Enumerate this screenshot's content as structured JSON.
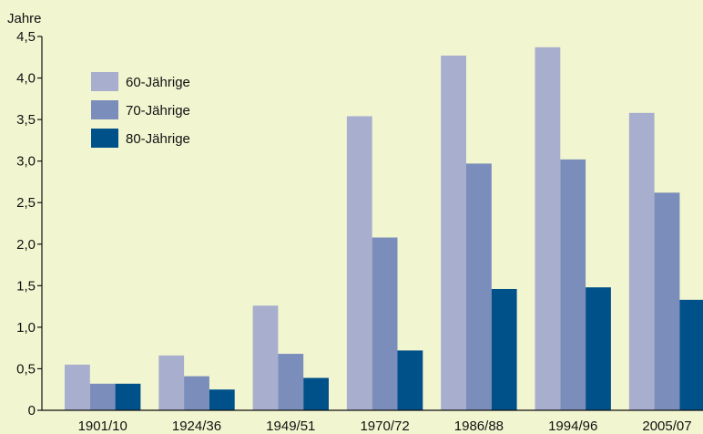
{
  "chart_data": {
    "type": "bar",
    "title": "",
    "ylabel": "Jahre",
    "xlabel": "",
    "ylim": [
      0,
      4.5
    ],
    "yticks": [
      "0",
      "0,5",
      "1,0",
      "1,5",
      "2,0",
      "2,5",
      "3,0",
      "3,5",
      "4,0",
      "4,5"
    ],
    "grid": false,
    "legend_position": "top-left",
    "categories": [
      "1901/10",
      "1924/36",
      "1949/51",
      "1970/72",
      "1986/88",
      "1994/96",
      "2005/07"
    ],
    "series": [
      {
        "name": "60-Jährige",
        "color": "#a8aecd",
        "values": [
          0.55,
          0.66,
          1.26,
          3.54,
          4.27,
          4.37,
          3.58
        ]
      },
      {
        "name": "70-Jährige",
        "color": "#7b8dba",
        "values": [
          0.32,
          0.41,
          0.68,
          2.08,
          2.97,
          3.02,
          2.62
        ]
      },
      {
        "name": "80-Jährige",
        "color": "#00508a",
        "values": [
          0.32,
          0.25,
          0.39,
          0.72,
          1.46,
          1.48,
          1.33
        ]
      }
    ]
  }
}
